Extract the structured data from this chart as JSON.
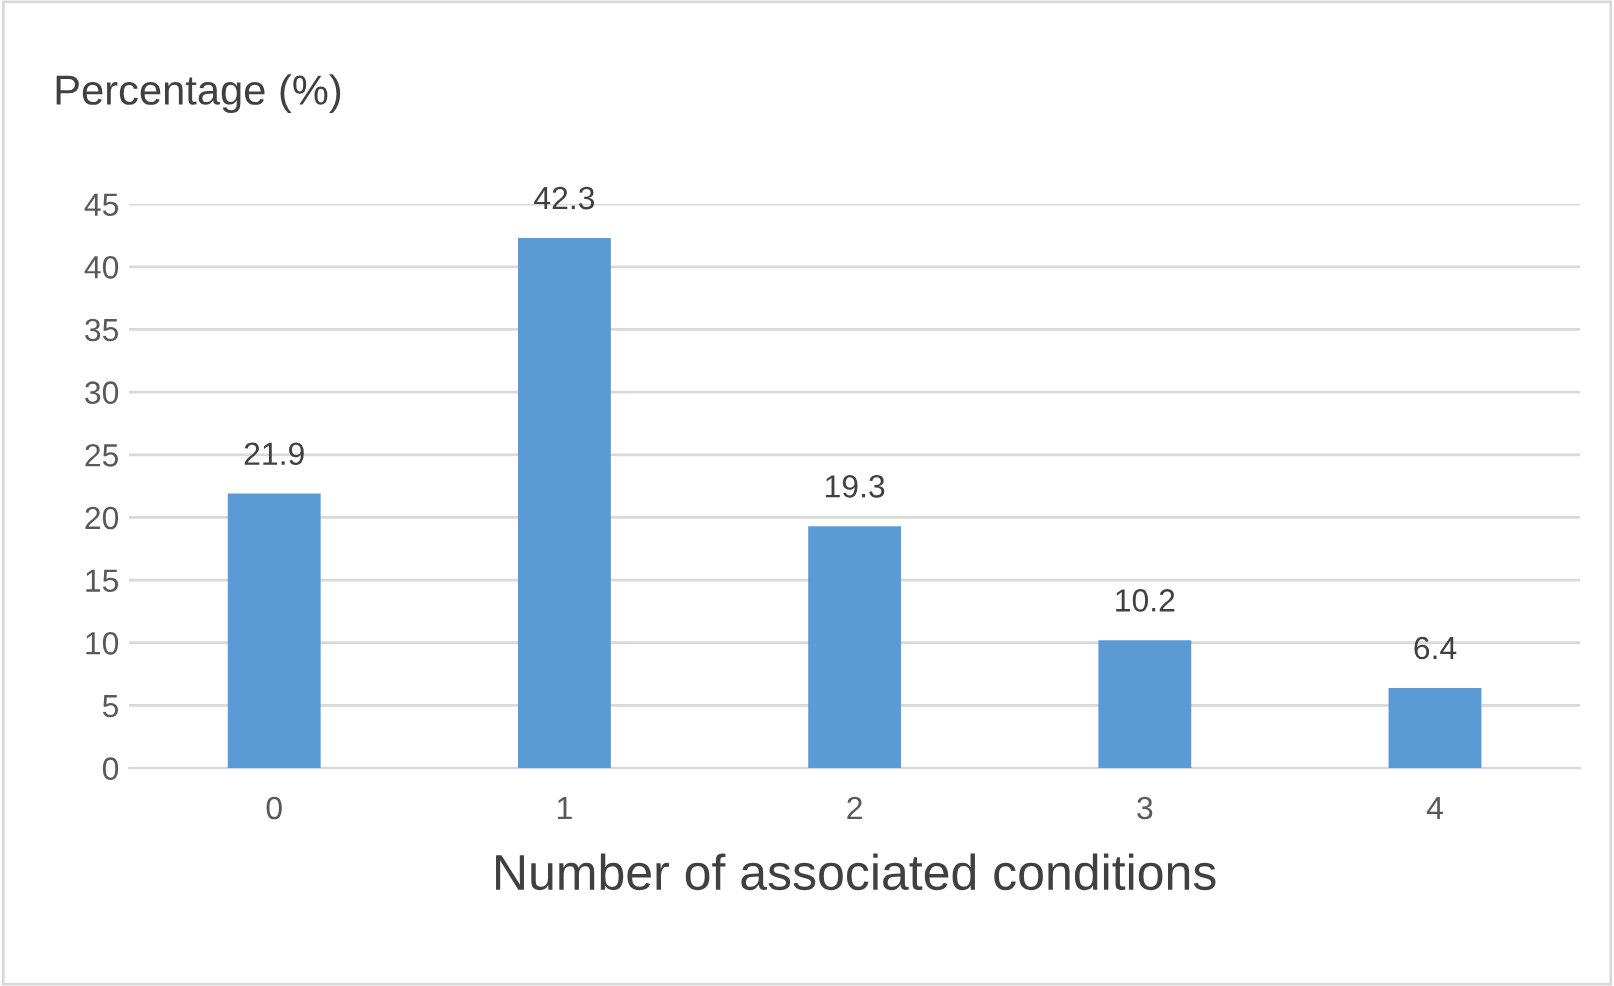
{
  "chart_data": {
    "type": "bar",
    "ylabel": "Percentage (%)",
    "xlabel": "Number of associated conditions",
    "categories": [
      "0",
      "1",
      "2",
      "3",
      "4"
    ],
    "values": [
      21.9,
      42.3,
      19.3,
      10.2,
      6.4
    ],
    "color": "#5b9bd5",
    "ylim": [
      0,
      45
    ],
    "yticks": [
      0,
      5,
      10,
      15,
      20,
      25,
      30,
      35,
      40,
      45
    ],
    "grid": "y",
    "data_labels": true
  }
}
